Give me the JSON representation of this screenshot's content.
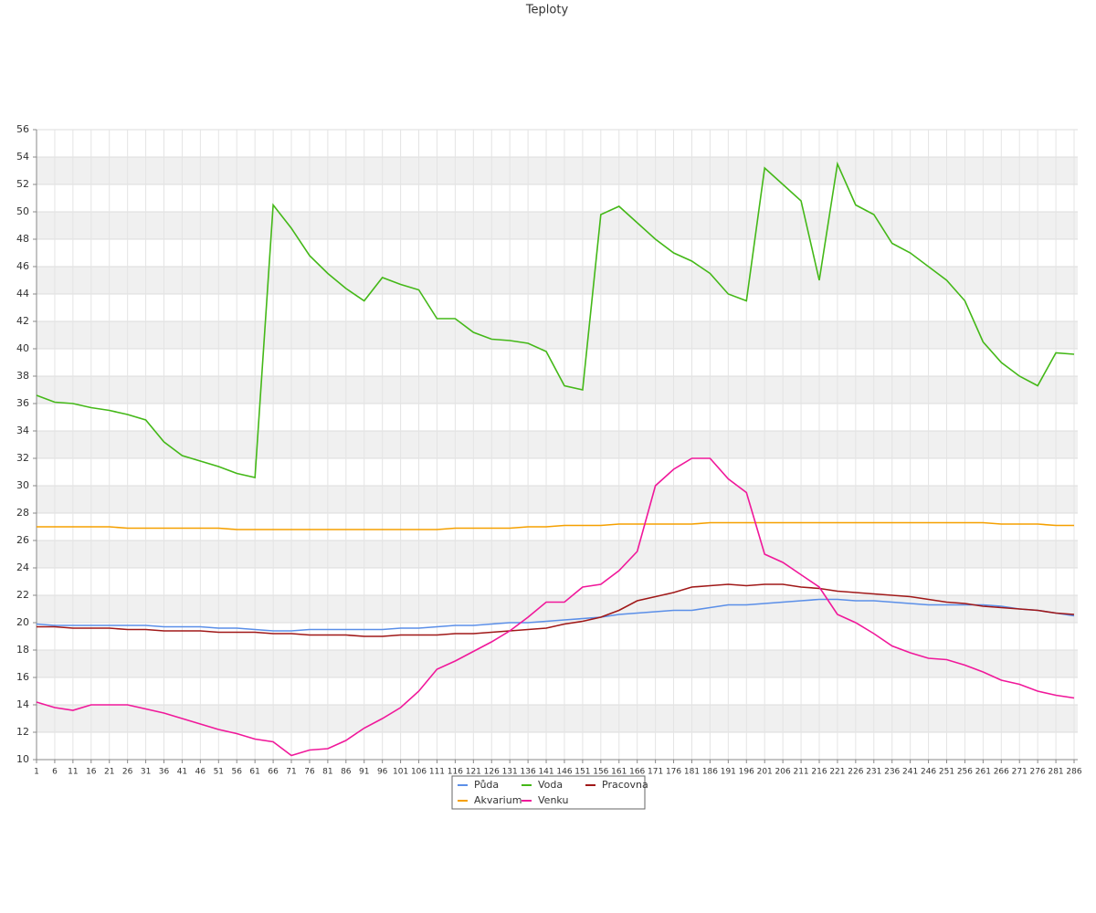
{
  "chart_data": {
    "type": "line",
    "title": "Teploty",
    "x": [
      1,
      6,
      11,
      16,
      21,
      26,
      31,
      36,
      41,
      46,
      51,
      56,
      61,
      66,
      71,
      76,
      81,
      86,
      91,
      96,
      101,
      106,
      111,
      116,
      121,
      126,
      131,
      136,
      141,
      146,
      151,
      156,
      161,
      166,
      171,
      176,
      181,
      186,
      191,
      196,
      201,
      206,
      211,
      216,
      221,
      226,
      231,
      236,
      241,
      246,
      251,
      256,
      261,
      266,
      271,
      276,
      281,
      286
    ],
    "xlim": [
      1,
      287
    ],
    "ylim": [
      10,
      56
    ],
    "yticks": [
      10,
      12,
      14,
      16,
      18,
      20,
      22,
      24,
      26,
      28,
      30,
      32,
      34,
      36,
      38,
      40,
      42,
      44,
      46,
      48,
      50,
      52,
      54,
      56
    ],
    "grid": true,
    "legend": "bottom",
    "series": [
      {
        "name": "Půda",
        "color": "#5b8fe8",
        "values": [
          19.9,
          19.8,
          19.8,
          19.8,
          19.8,
          19.8,
          19.8,
          19.7,
          19.7,
          19.7,
          19.6,
          19.6,
          19.5,
          19.4,
          19.4,
          19.5,
          19.5,
          19.5,
          19.5,
          19.5,
          19.6,
          19.6,
          19.7,
          19.8,
          19.8,
          19.9,
          20.0,
          20.0,
          20.1,
          20.2,
          20.3,
          20.4,
          20.6,
          20.7,
          20.8,
          20.9,
          20.9,
          21.1,
          21.3,
          21.3,
          21.4,
          21.5,
          21.6,
          21.7,
          21.7,
          21.6,
          21.6,
          21.5,
          21.4,
          21.3,
          21.3,
          21.3,
          21.3,
          21.2,
          21.0,
          20.9,
          20.7,
          20.5
        ]
      },
      {
        "name": "Voda",
        "color": "#44b818",
        "values": [
          36.6,
          36.1,
          36.0,
          35.7,
          35.5,
          35.2,
          34.8,
          33.2,
          32.2,
          31.8,
          31.4,
          30.9,
          30.6,
          50.5,
          48.8,
          46.8,
          45.5,
          44.4,
          43.5,
          45.2,
          44.7,
          44.3,
          42.2,
          42.2,
          41.2,
          40.7,
          40.6,
          40.4,
          39.8,
          37.3,
          37.0,
          49.8,
          50.4,
          49.2,
          48.0,
          47.0,
          46.4,
          45.5,
          44.0,
          43.5,
          53.2,
          52.0,
          50.8,
          45.0,
          53.5,
          50.5,
          49.8,
          47.7,
          47.0,
          46.0,
          45.0,
          43.5,
          40.5,
          39.0,
          38.0,
          37.3,
          39.7,
          39.6
        ]
      },
      {
        "name": "Pracovna",
        "color": "#a01818",
        "values": [
          19.7,
          19.7,
          19.6,
          19.6,
          19.6,
          19.5,
          19.5,
          19.4,
          19.4,
          19.4,
          19.3,
          19.3,
          19.3,
          19.2,
          19.2,
          19.1,
          19.1,
          19.1,
          19.0,
          19.0,
          19.1,
          19.1,
          19.1,
          19.2,
          19.2,
          19.3,
          19.4,
          19.5,
          19.6,
          19.9,
          20.1,
          20.4,
          20.9,
          21.6,
          21.9,
          22.2,
          22.6,
          22.7,
          22.8,
          22.7,
          22.8,
          22.8,
          22.6,
          22.5,
          22.3,
          22.2,
          22.1,
          22.0,
          21.9,
          21.7,
          21.5,
          21.4,
          21.2,
          21.1,
          21.0,
          20.9,
          20.7,
          20.6
        ]
      },
      {
        "name": "Akvarium",
        "color": "#f5a000",
        "values": [
          27.0,
          27.0,
          27.0,
          27.0,
          27.0,
          26.9,
          26.9,
          26.9,
          26.9,
          26.9,
          26.9,
          26.8,
          26.8,
          26.8,
          26.8,
          26.8,
          26.8,
          26.8,
          26.8,
          26.8,
          26.8,
          26.8,
          26.8,
          26.9,
          26.9,
          26.9,
          26.9,
          27.0,
          27.0,
          27.1,
          27.1,
          27.1,
          27.2,
          27.2,
          27.2,
          27.2,
          27.2,
          27.3,
          27.3,
          27.3,
          27.3,
          27.3,
          27.3,
          27.3,
          27.3,
          27.3,
          27.3,
          27.3,
          27.3,
          27.3,
          27.3,
          27.3,
          27.3,
          27.2,
          27.2,
          27.2,
          27.1,
          27.1
        ]
      },
      {
        "name": "Venku",
        "color": "#f0189a",
        "values": [
          14.2,
          13.8,
          13.6,
          14.0,
          14.0,
          14.0,
          13.7,
          13.4,
          13.0,
          12.6,
          12.2,
          11.9,
          11.5,
          11.3,
          10.3,
          10.7,
          10.8,
          11.4,
          12.3,
          13.0,
          13.8,
          15.0,
          16.6,
          17.2,
          17.9,
          18.6,
          19.4,
          20.4,
          21.5,
          21.5,
          22.6,
          22.8,
          23.8,
          25.2,
          30.0,
          31.2,
          32.0,
          32.0,
          30.5,
          29.5,
          25.0,
          24.4,
          23.5,
          22.6,
          20.6,
          20.0,
          19.2,
          18.3,
          17.8,
          17.4,
          17.3,
          16.9,
          16.4,
          15.8,
          15.5,
          15.0,
          14.7,
          14.5
        ]
      }
    ]
  }
}
